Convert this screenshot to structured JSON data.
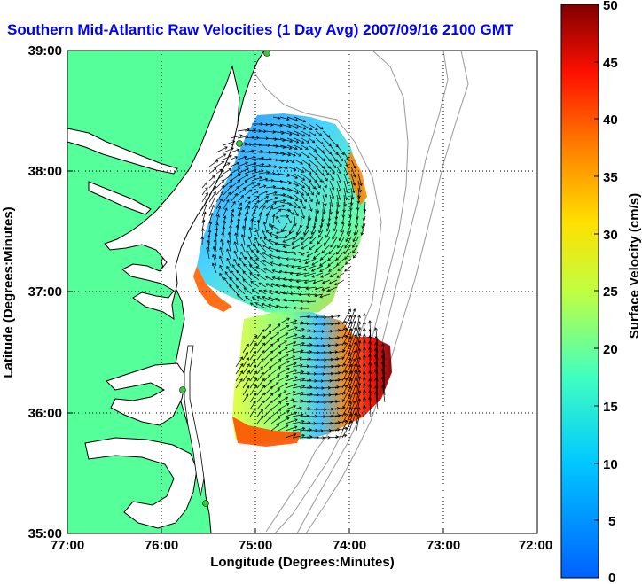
{
  "title": "Southern Mid-Atlantic Raw Velocities (1 Day Avg) 2007/09/16 2100 GMT",
  "map": {
    "xlabel": "Longitude (Degrees:Minutes)",
    "ylabel": "Latitude (Degrees:Minutes)",
    "x_ticks": [
      "77:00",
      "76:00",
      "75:00",
      "74:00",
      "73:00",
      "72:00"
    ],
    "y_ticks": [
      "39:00",
      "38:00",
      "37:00",
      "36:00",
      "35:00"
    ],
    "xlim": [
      -77,
      -72
    ],
    "ylim": [
      35,
      39
    ],
    "grid": "dotted",
    "colors": {
      "land": "#55ff99",
      "coast": "#000000",
      "bathymetry": "#999999",
      "station": "#33cc33"
    }
  },
  "colorbar": {
    "label": "Surface Velocity (cm/s)",
    "ticks": [
      "0",
      "5",
      "10",
      "15",
      "20",
      "25",
      "30",
      "35",
      "40",
      "45",
      "50"
    ],
    "range": [
      0,
      50
    ],
    "colormap": "jet"
  }
}
